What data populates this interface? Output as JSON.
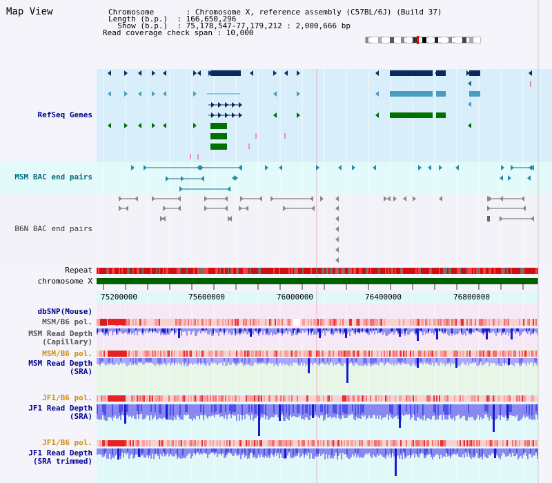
{
  "title": "Map View",
  "info": {
    "chromosome_line": "Chromosome       : Chromosome X, reference assembly (C57BL/6J) (Build 37)",
    "length_line": "Length (b.p.)  : 166,650,296",
    "show_line": "  Show (b.p.)  : 75,178,547-77,179,212 : 2,000,666 bp",
    "coverage_line": "Read coverage check span : 10,000"
  },
  "tracks": {
    "refseq": "RefSeq Genes",
    "msm_bac": "MSM BAC end pairs",
    "b6n_bac": "B6N BAC end pairs",
    "repeat": "Repeat",
    "chromosome": "chromosome X",
    "dbsnp": "dbSNP(Mouse)",
    "msm_pol_1": "MSM/B6 pol.",
    "msm_depth_cap": "MSM Read Depth\n(Capillary)",
    "msm_pol_2": "MSM/B6 pol.",
    "msm_depth_sra": "MSM Read Depth\n(SRA)",
    "jf1_pol_1": "JF1/B6 pol.",
    "jf1_depth_sra": "JF1 Read Depth\n(SRA)",
    "jf1_pol_2": "JF1/B6 pol.",
    "jf1_depth_trim": "JF1 Read Depth\n(SRA trimmed)"
  },
  "axis": {
    "ticks": [
      "75200000",
      "75600000",
      "76000000",
      "76400000",
      "76800000"
    ]
  },
  "colors": {
    "refseq_bg": "#d8eefa",
    "bac_bg": "#e2fafa",
    "navy": "#0a2a5a",
    "steel": "#4a9cc0",
    "green": "#007000",
    "label_blue": "#000090",
    "label_orange": "#d08c00",
    "depth_blue": "#7070f0"
  }
}
